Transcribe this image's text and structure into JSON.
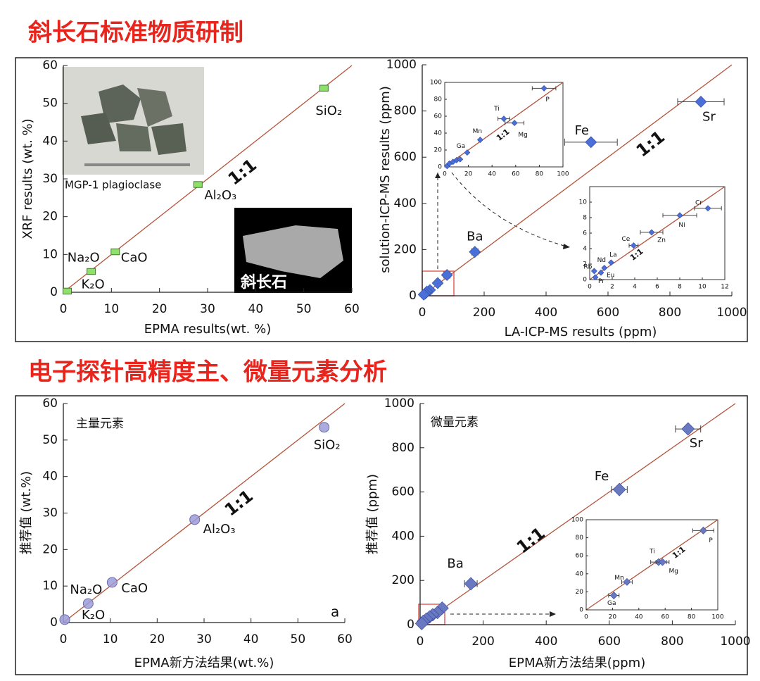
{
  "headings": [
    "斜长石标准物质研制",
    "电子探针高精度主、微量元素分析"
  ],
  "photo_captions": [
    "MGP-1 plagioclase",
    "斜长石"
  ],
  "chart_data": [
    {
      "type": "scatter",
      "x_label": "EPMA results(wt. %)",
      "y_label": "XRF results (wt. %)",
      "xlim": [
        0,
        60
      ],
      "ylim": [
        0,
        60
      ],
      "xticks": [
        0,
        10,
        20,
        30,
        40,
        50,
        60
      ],
      "yticks": [
        0,
        10,
        20,
        30,
        40,
        50,
        60
      ],
      "x": [
        54.2,
        28,
        10.8,
        5.8,
        0.8
      ],
      "y": [
        54,
        28.5,
        10.7,
        5.5,
        0.3
      ],
      "labels": [
        "SiO₂",
        "Al₂O₃",
        "CaO",
        "Na₂O",
        "K₂O"
      ],
      "marker": "square",
      "color": "#8fe06a",
      "line_color": "#b5533c",
      "annotation": "1:1"
    },
    {
      "type": "scatter",
      "x_label": "LA-ICP-MS results (ppm)",
      "y_label": "solution-ICP-MS results (ppm)",
      "xlim": [
        0,
        1000
      ],
      "ylim": [
        0,
        1000
      ],
      "xticks": [
        0,
        200,
        400,
        600,
        800,
        1000
      ],
      "yticks": [
        0,
        200,
        400,
        600,
        800,
        1000
      ],
      "x": [
        900,
        545,
        170,
        80,
        50,
        25,
        15,
        10,
        5
      ],
      "y": [
        840,
        665,
        190,
        90,
        55,
        25,
        18,
        10,
        5
      ],
      "xerr": [
        75,
        85,
        10,
        10,
        8,
        null,
        null,
        null,
        null
      ],
      "labels": [
        "Sr",
        "Fe",
        "Ba",
        null,
        null,
        null,
        null,
        null,
        null
      ],
      "marker": "diamond",
      "color": "#4a6fd6",
      "line_color": "#b5533c",
      "annotation": "1:1"
    },
    {
      "type": "scatter",
      "xlim": [
        0,
        100
      ],
      "ylim": [
        0,
        100
      ],
      "xticks": [
        0,
        20,
        40,
        60,
        80,
        100
      ],
      "yticks": [
        0,
        20,
        40,
        60,
        80,
        100
      ],
      "x": [
        84,
        50,
        59,
        30,
        19,
        2,
        4,
        7,
        10,
        13
      ],
      "y": [
        93,
        57,
        52,
        32,
        17,
        1,
        4,
        6,
        8,
        9
      ],
      "xerr": [
        10,
        5,
        8,
        null,
        null,
        null,
        null,
        null,
        null,
        null
      ],
      "labels": [
        "P",
        "Ti",
        "Mg",
        "Mn",
        "Ga",
        null,
        null,
        null,
        null,
        null
      ],
      "marker": "diamond",
      "color": "#4a6fd6",
      "line_color": "#b5533c",
      "annotation": "1:1"
    },
    {
      "type": "scatter",
      "xlim": [
        0,
        12
      ],
      "ylim": [
        0,
        12
      ],
      "xticks": [
        0,
        2,
        4,
        6,
        8,
        10,
        12
      ],
      "yticks": [
        0,
        2,
        4,
        6,
        8,
        10
      ],
      "x": [
        10.5,
        8,
        5.5,
        3.9,
        1.9,
        1.3,
        0.4,
        1.0,
        0.5
      ],
      "y": [
        9.2,
        8.3,
        6.1,
        4.4,
        2.2,
        1.5,
        1.1,
        0.9,
        0.3
      ],
      "xerr": [
        1.2,
        1.5,
        1,
        0.4,
        null,
        null,
        null,
        null,
        null
      ],
      "labels": [
        "Cr",
        "Ni",
        "Zn",
        "Ce",
        "La",
        "Nd",
        "Rb",
        "Eu",
        "Pr"
      ],
      "marker": "diamond",
      "color": "#4a6fd6",
      "line_color": "#b5533c",
      "annotation": "1:1"
    },
    {
      "type": "scatter",
      "x_label": "EPMA新方法结果(wt.%)",
      "y_label": "推荐值 (wt.%)",
      "note": "主量元素",
      "panel_letter": "a",
      "xlim": [
        0,
        60
      ],
      "ylim": [
        0,
        60
      ],
      "xticks": [
        0,
        10,
        20,
        30,
        40,
        50,
        60
      ],
      "yticks": [
        0,
        10,
        20,
        30,
        40,
        50,
        60
      ],
      "x": [
        55.6,
        28,
        10.4,
        5.3,
        0.3
      ],
      "y": [
        53.5,
        28.2,
        11,
        5.2,
        0.8
      ],
      "labels": [
        "SiO₂",
        "Al₂O₃",
        "CaO",
        "Na₂O",
        "K₂O"
      ],
      "marker": "circle",
      "color": "#9c9cd8",
      "line_color": "#b5533c",
      "annotation": "1:1"
    },
    {
      "type": "scatter",
      "x_label": "EPMA新方法结果(ppm)",
      "y_label": "推荐值 (ppm)",
      "note": "微量元素",
      "xlim": [
        0,
        1000
      ],
      "ylim": [
        0,
        1000
      ],
      "xticks": [
        0,
        200,
        400,
        600,
        800,
        1000
      ],
      "yticks": [
        0,
        200,
        400,
        600,
        800,
        1000
      ],
      "x": [
        850,
        632,
        161,
        70,
        55,
        40,
        30,
        20,
        10,
        5
      ],
      "y": [
        885,
        611,
        185,
        75,
        55,
        45,
        35,
        25,
        15,
        5
      ],
      "xerr": [
        40,
        25,
        20,
        null,
        null,
        null,
        null,
        null,
        null,
        null
      ],
      "labels": [
        "Sr",
        "Fe",
        "Ba",
        null,
        null,
        null,
        null,
        null,
        null,
        null
      ],
      "marker": "diamond",
      "color": "#6a78c0",
      "line_color": "#b5533c",
      "annotation": "1:1"
    },
    {
      "type": "scatter",
      "xlim": [
        0,
        100
      ],
      "ylim": [
        0,
        100
      ],
      "xticks": [
        0,
        20,
        40,
        60,
        80,
        100
      ],
      "yticks": [
        0,
        20,
        40,
        60,
        80,
        100
      ],
      "x": [
        89,
        55,
        58,
        31,
        21
      ],
      "y": [
        88,
        53,
        53,
        31,
        16
      ],
      "xerr": [
        8,
        6,
        5,
        4,
        4
      ],
      "labels": [
        "P",
        "Ti",
        "Mg",
        "Mn",
        "Ga"
      ],
      "marker": "diamond",
      "color": "#6a78c0",
      "line_color": "#b5533c",
      "annotation": "1:1"
    }
  ]
}
